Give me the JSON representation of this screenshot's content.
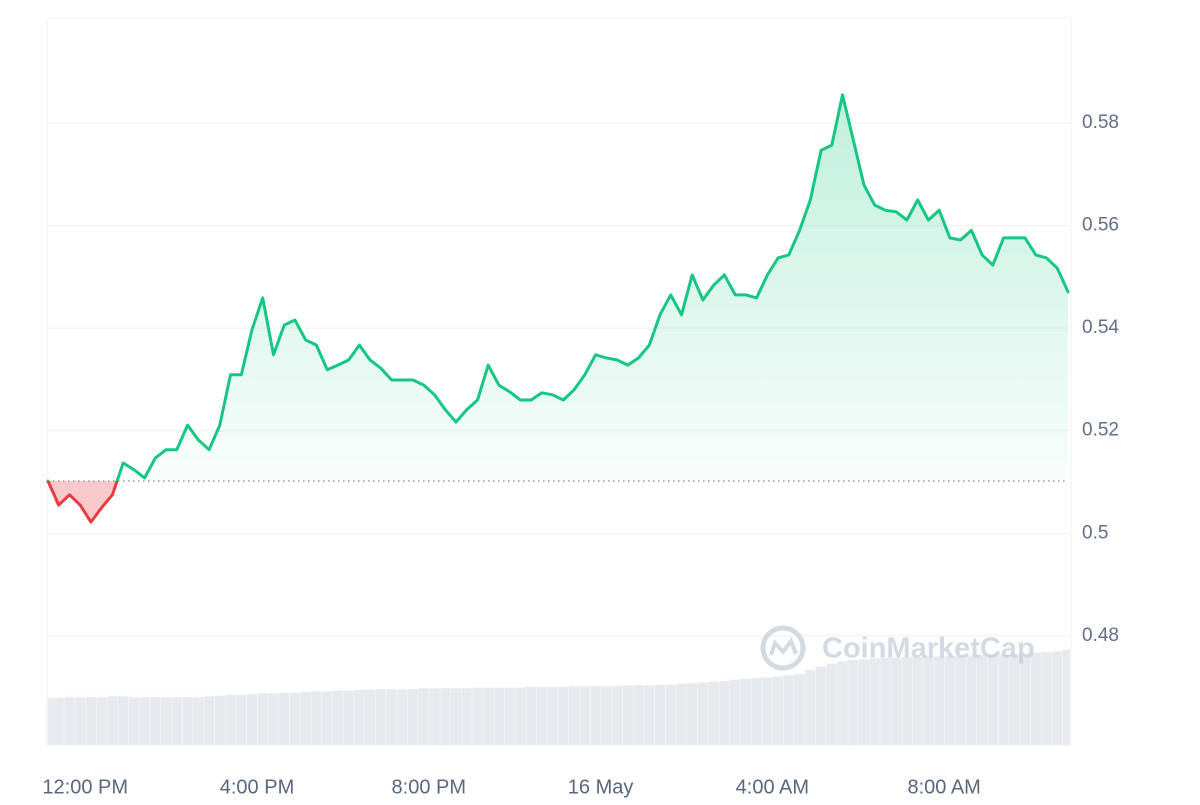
{
  "chart_data": {
    "type": "line",
    "categories": [
      null,
      null,
      null,
      "12:00 PM",
      null,
      null,
      null,
      null,
      null,
      null,
      null,
      null,
      null,
      null,
      null,
      null,
      null,
      null,
      null,
      "4:00 PM",
      null,
      null,
      null,
      null,
      null,
      null,
      null,
      null,
      null,
      null,
      null,
      null,
      null,
      null,
      null,
      "8:00 PM",
      null,
      null,
      null,
      null,
      null,
      null,
      null,
      null,
      null,
      null,
      null,
      null,
      null,
      null,
      null,
      "16 May",
      null,
      null,
      null,
      null,
      null,
      null,
      null,
      null,
      null,
      null,
      null,
      null,
      null,
      null,
      null,
      "4:00 AM",
      null,
      null,
      null,
      null,
      null,
      null,
      null,
      null,
      null,
      null,
      null,
      null,
      null,
      null,
      null,
      "8:00 AM",
      null,
      null,
      null,
      null,
      null,
      null,
      null,
      null,
      null,
      null,
      null,
      null
    ],
    "series": [
      {
        "name": "Price",
        "up_color": "#16c784",
        "down_color": "#ea3943",
        "values": [
          0.5102,
          0.5055,
          0.5075,
          0.5055,
          0.5022,
          0.505,
          0.5075,
          0.5137,
          0.5124,
          0.5108,
          0.5147,
          0.5163,
          0.5163,
          0.5211,
          0.5182,
          0.5163,
          0.5211,
          0.5309,
          0.5309,
          0.5397,
          0.5459,
          0.5348,
          0.5406,
          0.5416,
          0.5377,
          0.5367,
          0.5319,
          0.5328,
          0.5338,
          0.5367,
          0.5338,
          0.5322,
          0.5299,
          0.5299,
          0.5299,
          0.5289,
          0.527,
          0.5241,
          0.5217,
          0.5241,
          0.526,
          0.5328,
          0.5289,
          0.5276,
          0.526,
          0.526,
          0.5274,
          0.527,
          0.526,
          0.528,
          0.5309,
          0.5348,
          0.5342,
          0.5338,
          0.5328,
          0.5342,
          0.5367,
          0.5426,
          0.5465,
          0.5426,
          0.5504,
          0.5455,
          0.5484,
          0.5504,
          0.5465,
          0.5465,
          0.5459,
          0.5504,
          0.5537,
          0.5543,
          0.5591,
          0.565,
          0.5747,
          0.5757,
          0.5855,
          0.5767,
          0.5679,
          0.564,
          0.563,
          0.5627,
          0.5611,
          0.565,
          0.5611,
          0.563,
          0.5576,
          0.5572,
          0.5591,
          0.5543,
          0.5523,
          0.5576,
          0.5576,
          0.5576,
          0.5543,
          0.5537,
          0.5517,
          0.5471
        ]
      },
      {
        "name": "Volume",
        "color": "#e6e9ee",
        "axis": "y2",
        "values": [
          6.5,
          6.5,
          6.6,
          6.6,
          6.6,
          6.6,
          6.7,
          6.7,
          6.6,
          6.6,
          6.6,
          6.6,
          6.6,
          6.6,
          6.6,
          6.7,
          6.8,
          6.9,
          6.9,
          7.0,
          7.1,
          7.1,
          7.2,
          7.2,
          7.3,
          7.4,
          7.4,
          7.5,
          7.5,
          7.6,
          7.6,
          7.7,
          7.7,
          7.7,
          7.7,
          7.8,
          7.8,
          7.8,
          7.8,
          7.8,
          7.9,
          7.9,
          7.9,
          7.9,
          7.9,
          8.0,
          8.0,
          8.0,
          8.0,
          8.1,
          8.1,
          8.1,
          8.1,
          8.1,
          8.2,
          8.2,
          8.2,
          8.3,
          8.3,
          8.4,
          8.5,
          8.6,
          8.7,
          8.8,
          9.0,
          9.1,
          9.2,
          9.3,
          9.4,
          9.6,
          9.8,
          10.3,
          10.8,
          11.2,
          11.5,
          11.7,
          11.8,
          11.9,
          12.0,
          12.0,
          12.1,
          12.1,
          12.2,
          12.2,
          12.3,
          12.3,
          12.3,
          12.4,
          12.4,
          12.5,
          12.5,
          12.6,
          12.7,
          12.8,
          12.9,
          13.1
        ]
      }
    ],
    "baseline": 0.5102,
    "ylim": [
      0.4587,
      0.6005
    ],
    "yticks": [
      0.48,
      0.5,
      0.52,
      0.54,
      0.56,
      0.58
    ],
    "y2lim": [
      0,
      100
    ],
    "grid": true,
    "watermark": "CoinMarketCap"
  }
}
